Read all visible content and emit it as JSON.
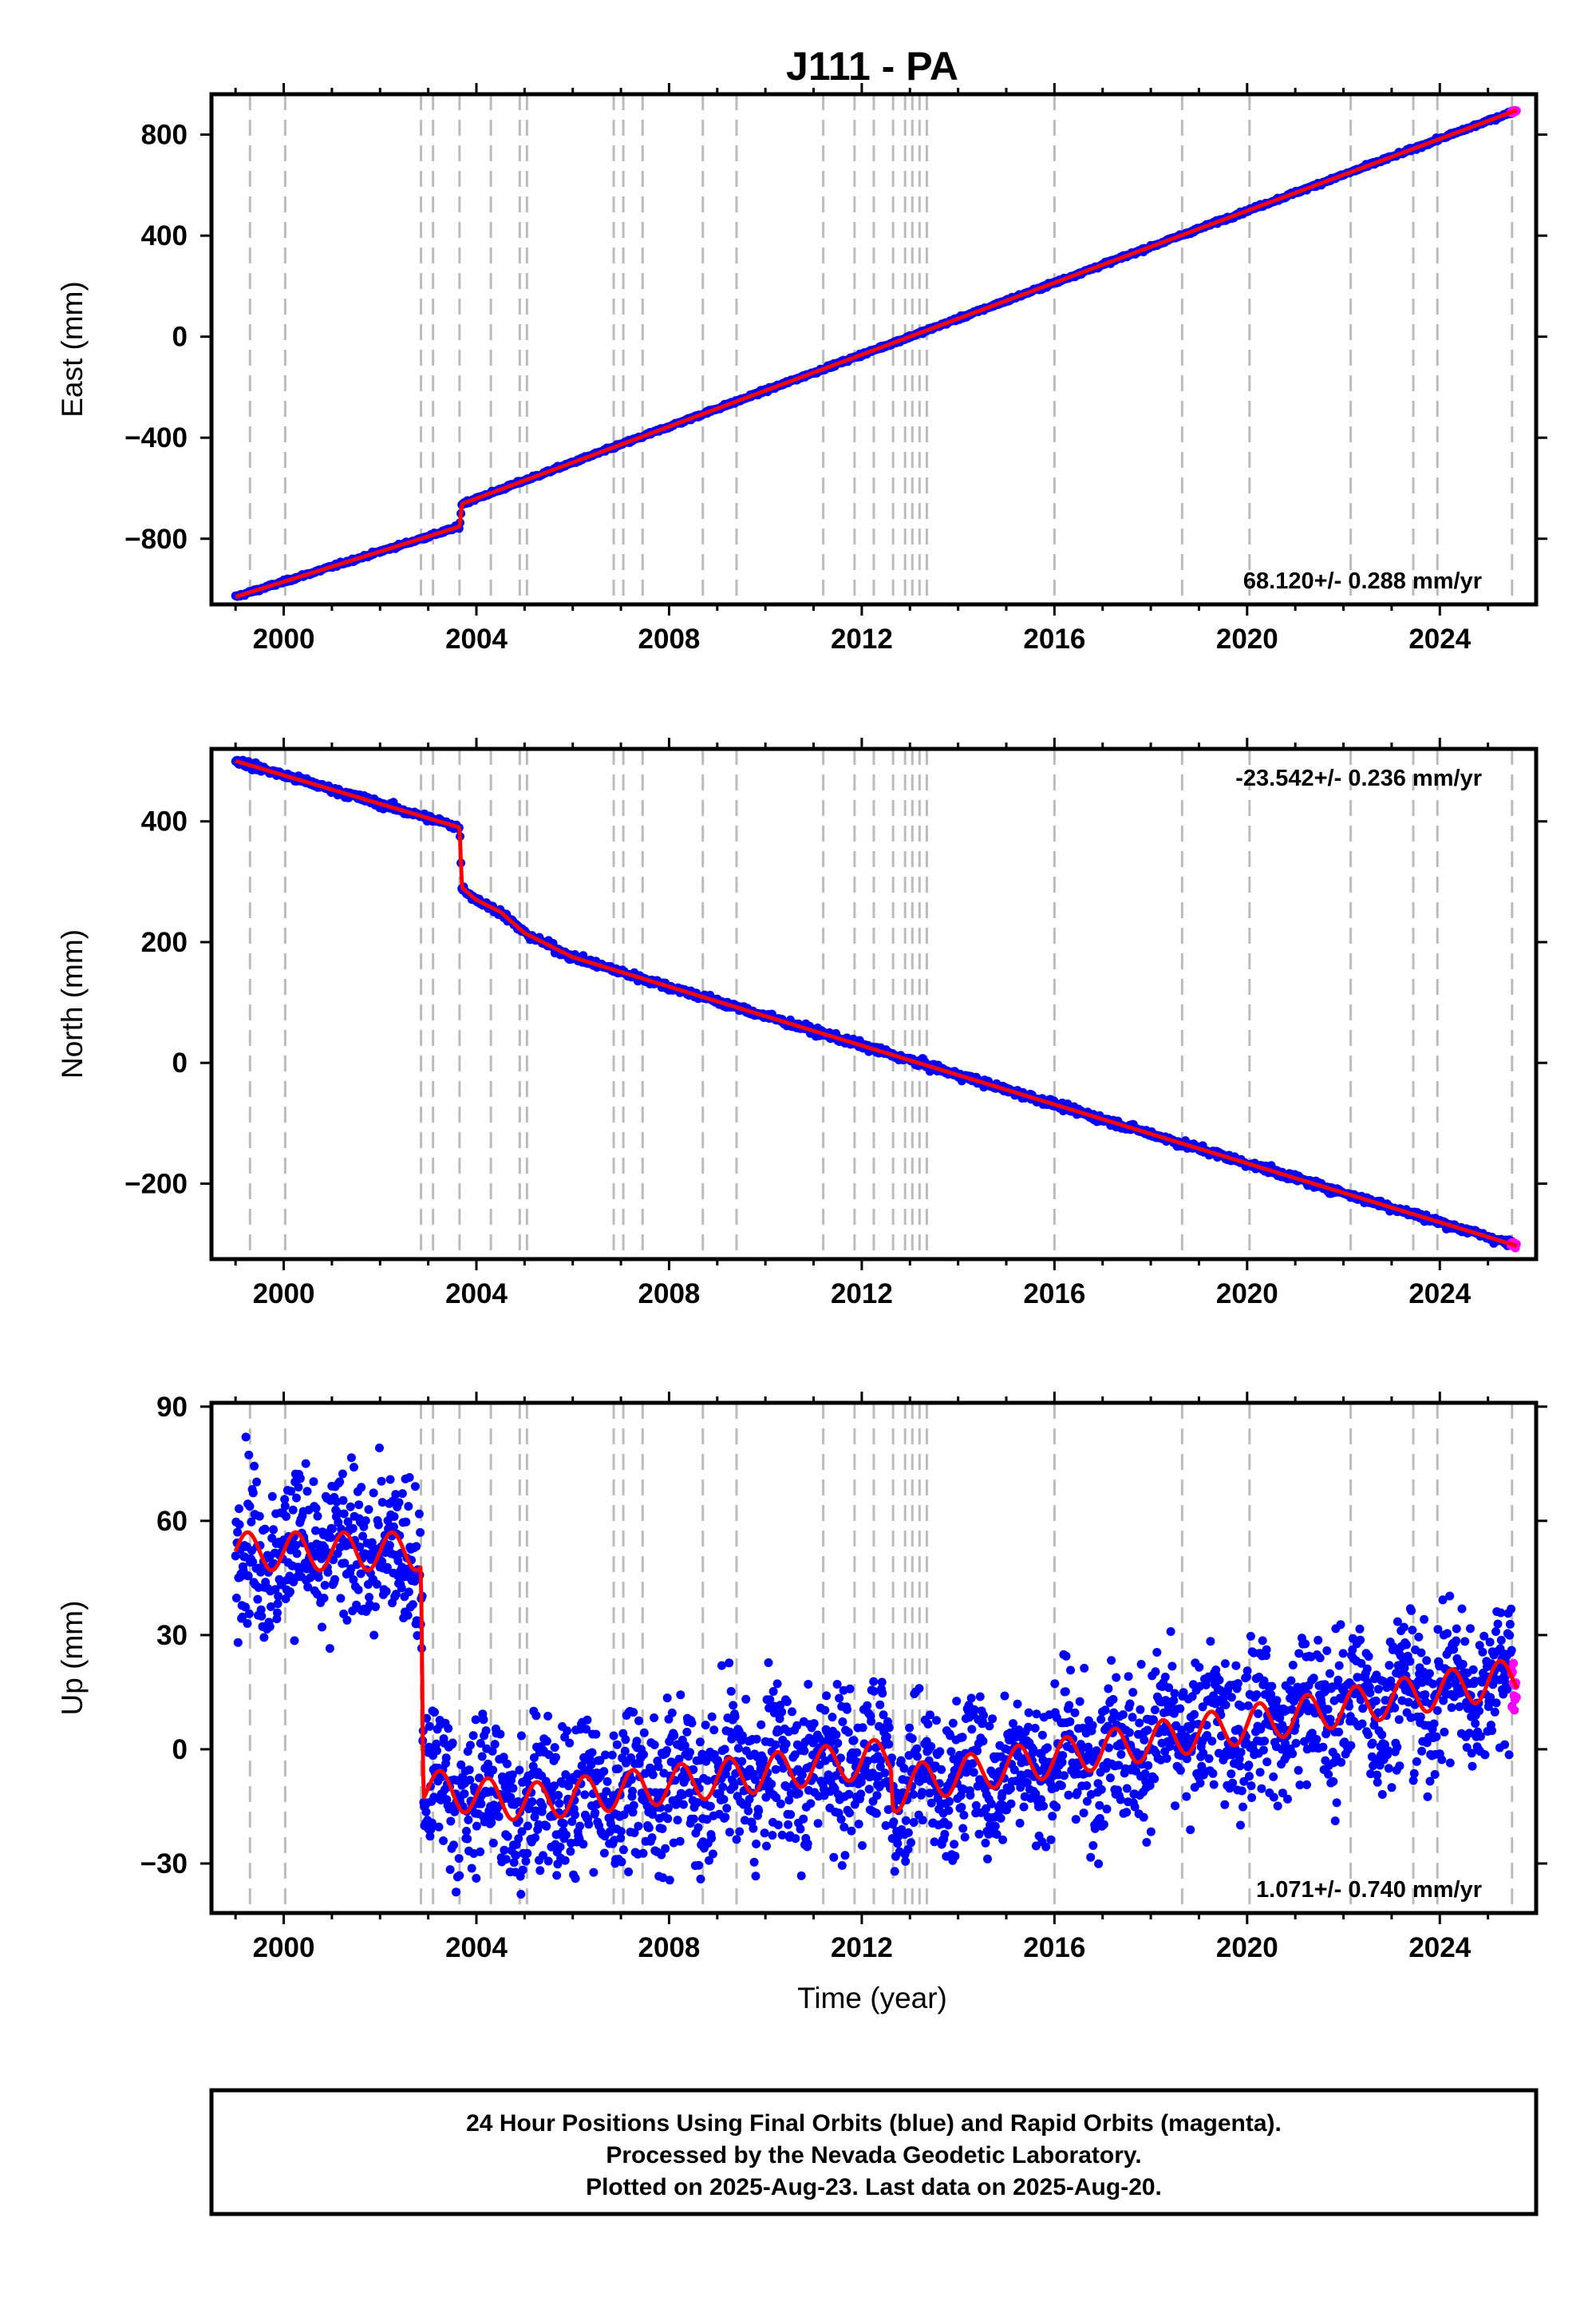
{
  "chart_data": {
    "type": "scatter",
    "title": "J111 - PA",
    "xlabel": "Time (year)",
    "xlim": [
      1998.5,
      2026.0
    ],
    "xticks": [
      "2000",
      "2004",
      "2008",
      "2012",
      "2016",
      "2020",
      "2024"
    ],
    "marker_lines": [
      1999.3,
      2000.03,
      2002.85,
      2003.1,
      2003.65,
      2004.3,
      2004.9,
      2005.05,
      2006.85,
      2007.05,
      2007.45,
      2008.7,
      2009.4,
      2011.2,
      2011.85,
      2012.25,
      2012.65,
      2012.9,
      2013.05,
      2013.2,
      2013.35,
      2016.0,
      2018.65,
      2020.05,
      2022.15,
      2023.45,
      2023.95,
      2025.5
    ],
    "panels": [
      {
        "ylabel": "East (mm)",
        "ylim": [
          -1060,
          960
        ],
        "yticks": [
          "800",
          "400",
          "0",
          "−400",
          "−800"
        ],
        "ytick_values": [
          800,
          400,
          0,
          -400,
          -800
        ],
        "rate": "68.120+/- 0.288 mm/yr",
        "rate_pos": "bottom-right",
        "series": [
          {
            "x": [
              1999.0,
              2003.65,
              2003.7,
              2025.6
            ],
            "y": [
              -1030,
              -752,
              -662,
              897
            ]
          }
        ]
      },
      {
        "ylabel": "North (mm)",
        "ylim": [
          -325,
          520
        ],
        "yticks": [
          "400",
          "200",
          "0",
          "−200"
        ],
        "ytick_values": [
          400,
          200,
          0,
          -200
        ],
        "rate": "-23.542+/- 0.236 mm/yr",
        "rate_pos": "top-right",
        "series": [
          {
            "x": [
              1999.0,
              2003.65,
              2003.7,
              2004.0,
              2004.5,
              2005.0,
              2006.0,
              2025.6
            ],
            "y": [
              500,
              390,
              290,
              270,
              250,
              215,
              175,
              -303
            ]
          }
        ]
      },
      {
        "ylabel": "Up (mm)",
        "ylim": [
          -43,
          91
        ],
        "yticks": [
          "90",
          "60",
          "30",
          "0",
          "−30"
        ],
        "ytick_values": [
          90,
          60,
          30,
          0,
          -30
        ],
        "rate": "1.071+/- 0.740 mm/yr",
        "rate_pos": "bottom-right",
        "series": [
          {
            "x": [
              1999.0,
              2002.85,
              2002.9,
              2005.0,
              2012.6,
              2012.65,
              2013.0,
              2025.6
            ],
            "y": [
              52,
              52,
              -10,
              -14,
              -2,
              -12,
              -9,
              19
            ]
          }
        ]
      }
    ],
    "series_colors": {
      "final_orbits": "#0000ff",
      "rapid_orbits": "#ff00ff",
      "model": "#ff0000",
      "marker_line": "#bbbbbb"
    }
  },
  "footer": {
    "line1": "24 Hour Positions Using Final Orbits (blue) and Rapid Orbits (magenta).",
    "line2": "Processed by the Nevada Geodetic Laboratory.",
    "line3": "Plotted on 2025-Aug-23. Last data on 2025-Aug-20."
  }
}
